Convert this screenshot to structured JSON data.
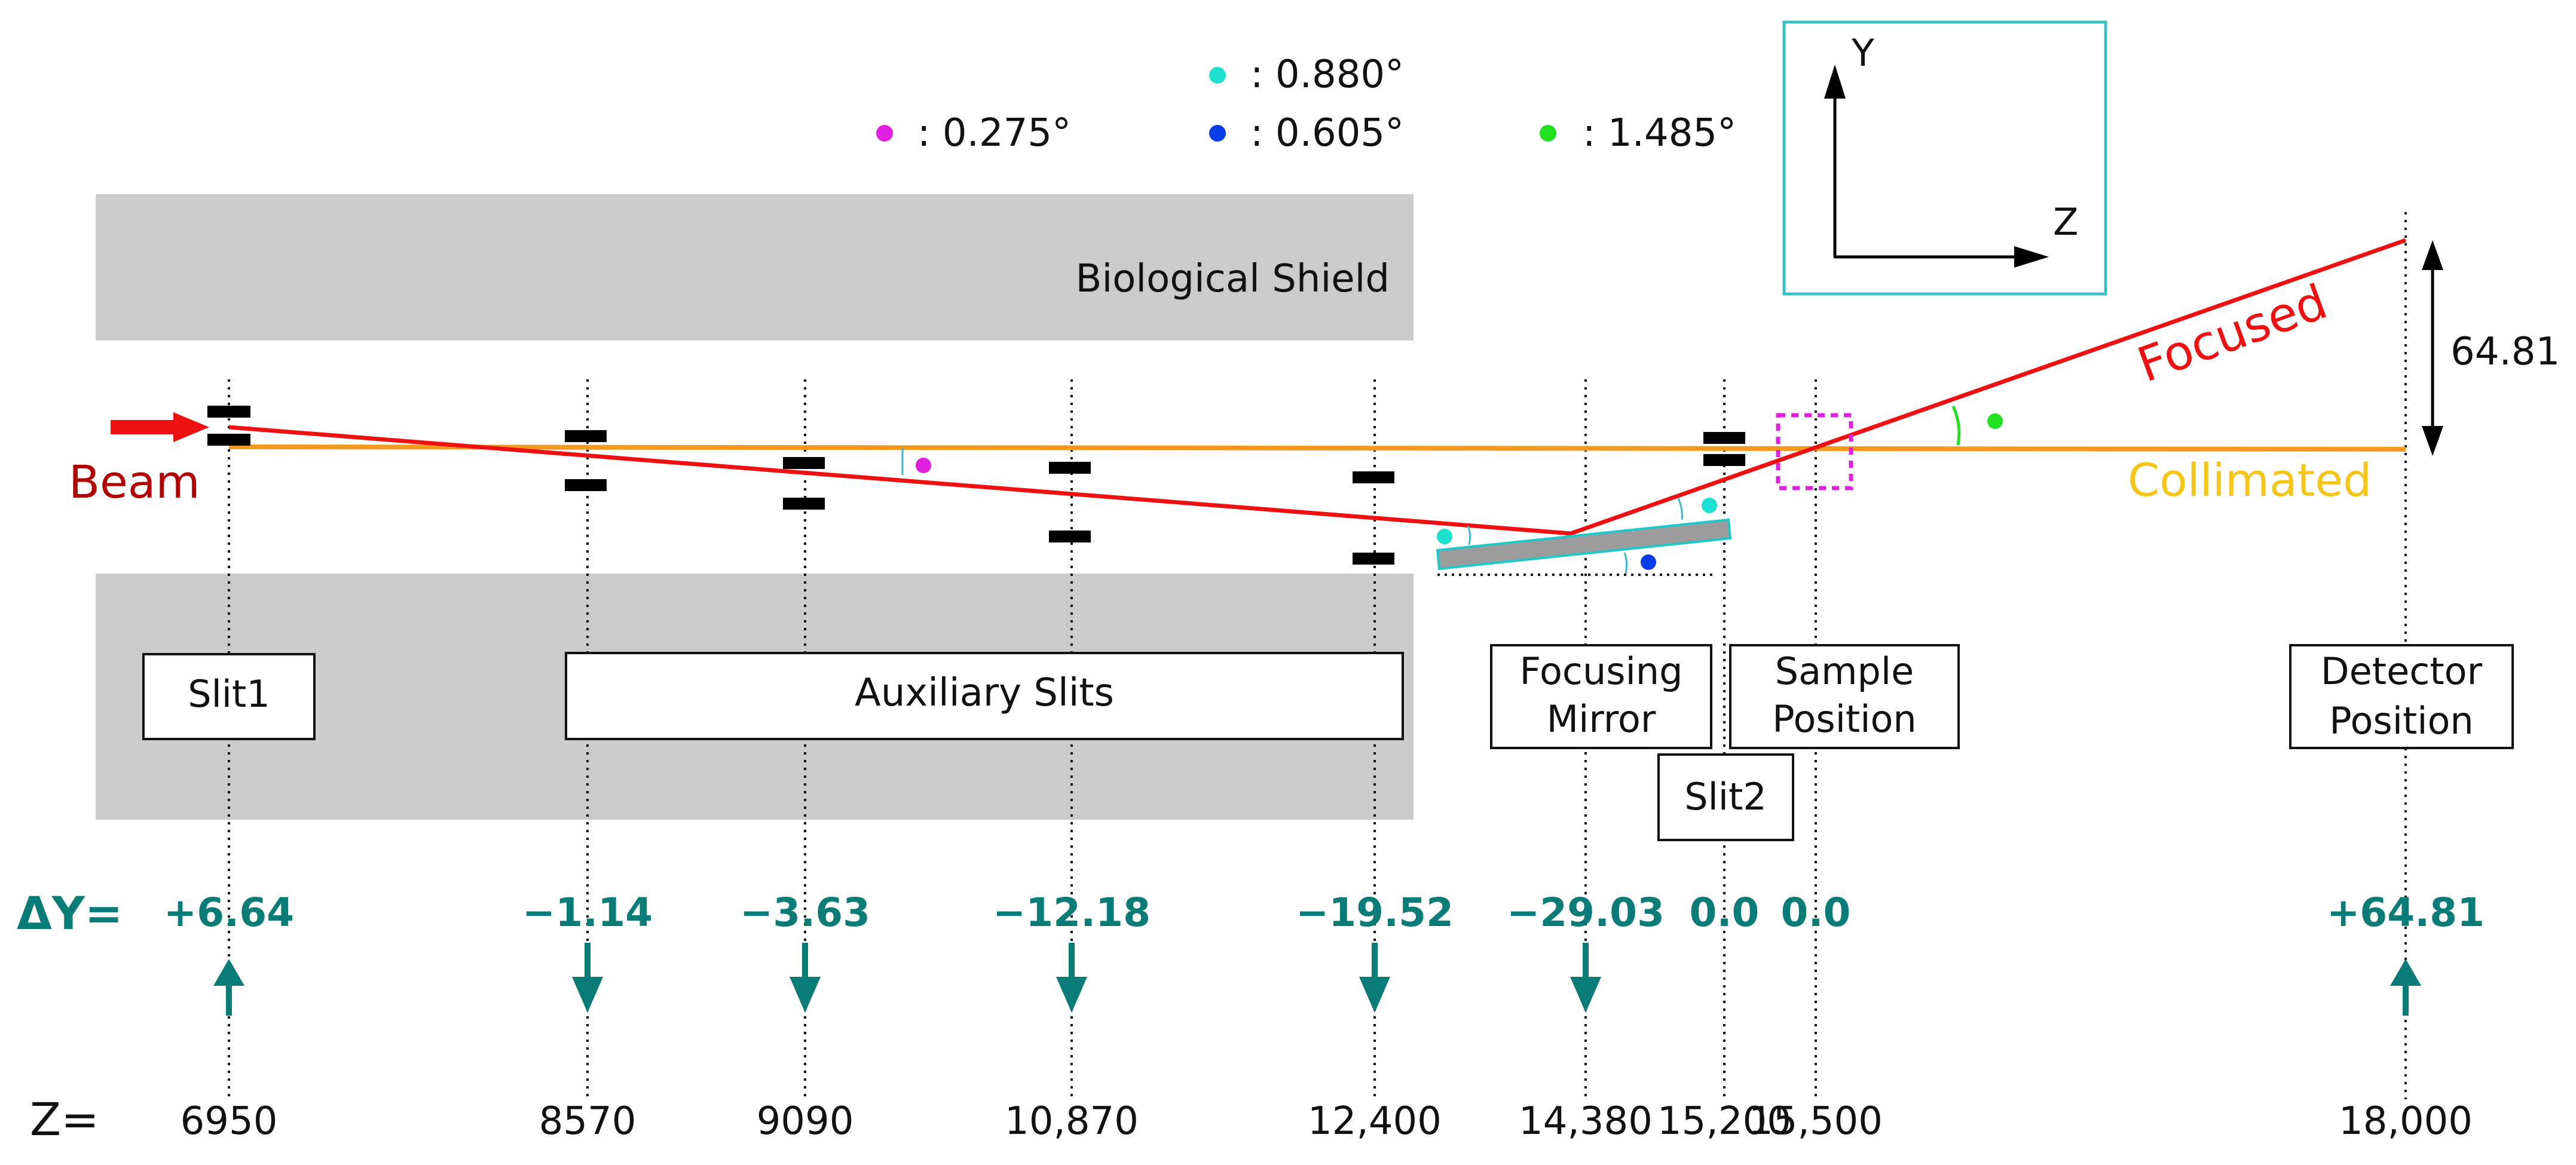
{
  "legend": {
    "entries": [
      {
        "text": ": 0.275°",
        "color": "#e020e0"
      },
      {
        "text": ": 0.880°",
        "color": "#1ee0d0"
      },
      {
        "text": ": 0.605°",
        "color": "#0a3de8"
      },
      {
        "text": ": 1.485°",
        "color": "#20e020"
      }
    ]
  },
  "axes_inset": {
    "y_label": "Y",
    "z_label": "Z",
    "border_color": "#3cc0c8"
  },
  "regions": {
    "bio_shield": "Biological Shield"
  },
  "beams": {
    "beam_label": "Beam",
    "focused_label": "Focused",
    "collimated_label": "Collimated",
    "offset_label": "64.81",
    "colors": {
      "focused": "#ee1111",
      "collimated": "#f39a1e",
      "beam_label": "#b30000",
      "collimated_label": "#f5c518"
    }
  },
  "boxes": {
    "slit1": "Slit1",
    "aux": "Auxiliary Slits",
    "mirror_1": "Focusing",
    "mirror_2": "Mirror",
    "sample_1": "Sample",
    "sample_2": "Position",
    "slit2": "Slit2",
    "detector_1": "Detector",
    "detector_2": "Position"
  },
  "dy_label": "ΔY=",
  "z_label": "Z=",
  "stations": [
    {
      "z": "6950",
      "dy": "+6.64",
      "dir": "up"
    },
    {
      "z": "8570",
      "dy": "−1.14",
      "dir": "down"
    },
    {
      "z": "9090",
      "dy": "−3.63",
      "dir": "down"
    },
    {
      "z": "10,870",
      "dy": "−12.18",
      "dir": "down"
    },
    {
      "z": "12,400",
      "dy": "−19.52",
      "dir": "down"
    },
    {
      "z": "14,380",
      "dy": "−29.03",
      "dir": "down"
    },
    {
      "z": "15,200",
      "dy": "0.0",
      "dir": "none"
    },
    {
      "z": "15,500",
      "dy": "0.0",
      "dir": "none"
    },
    {
      "z": "18,000",
      "dy": "+64.81",
      "dir": "up"
    }
  ]
}
